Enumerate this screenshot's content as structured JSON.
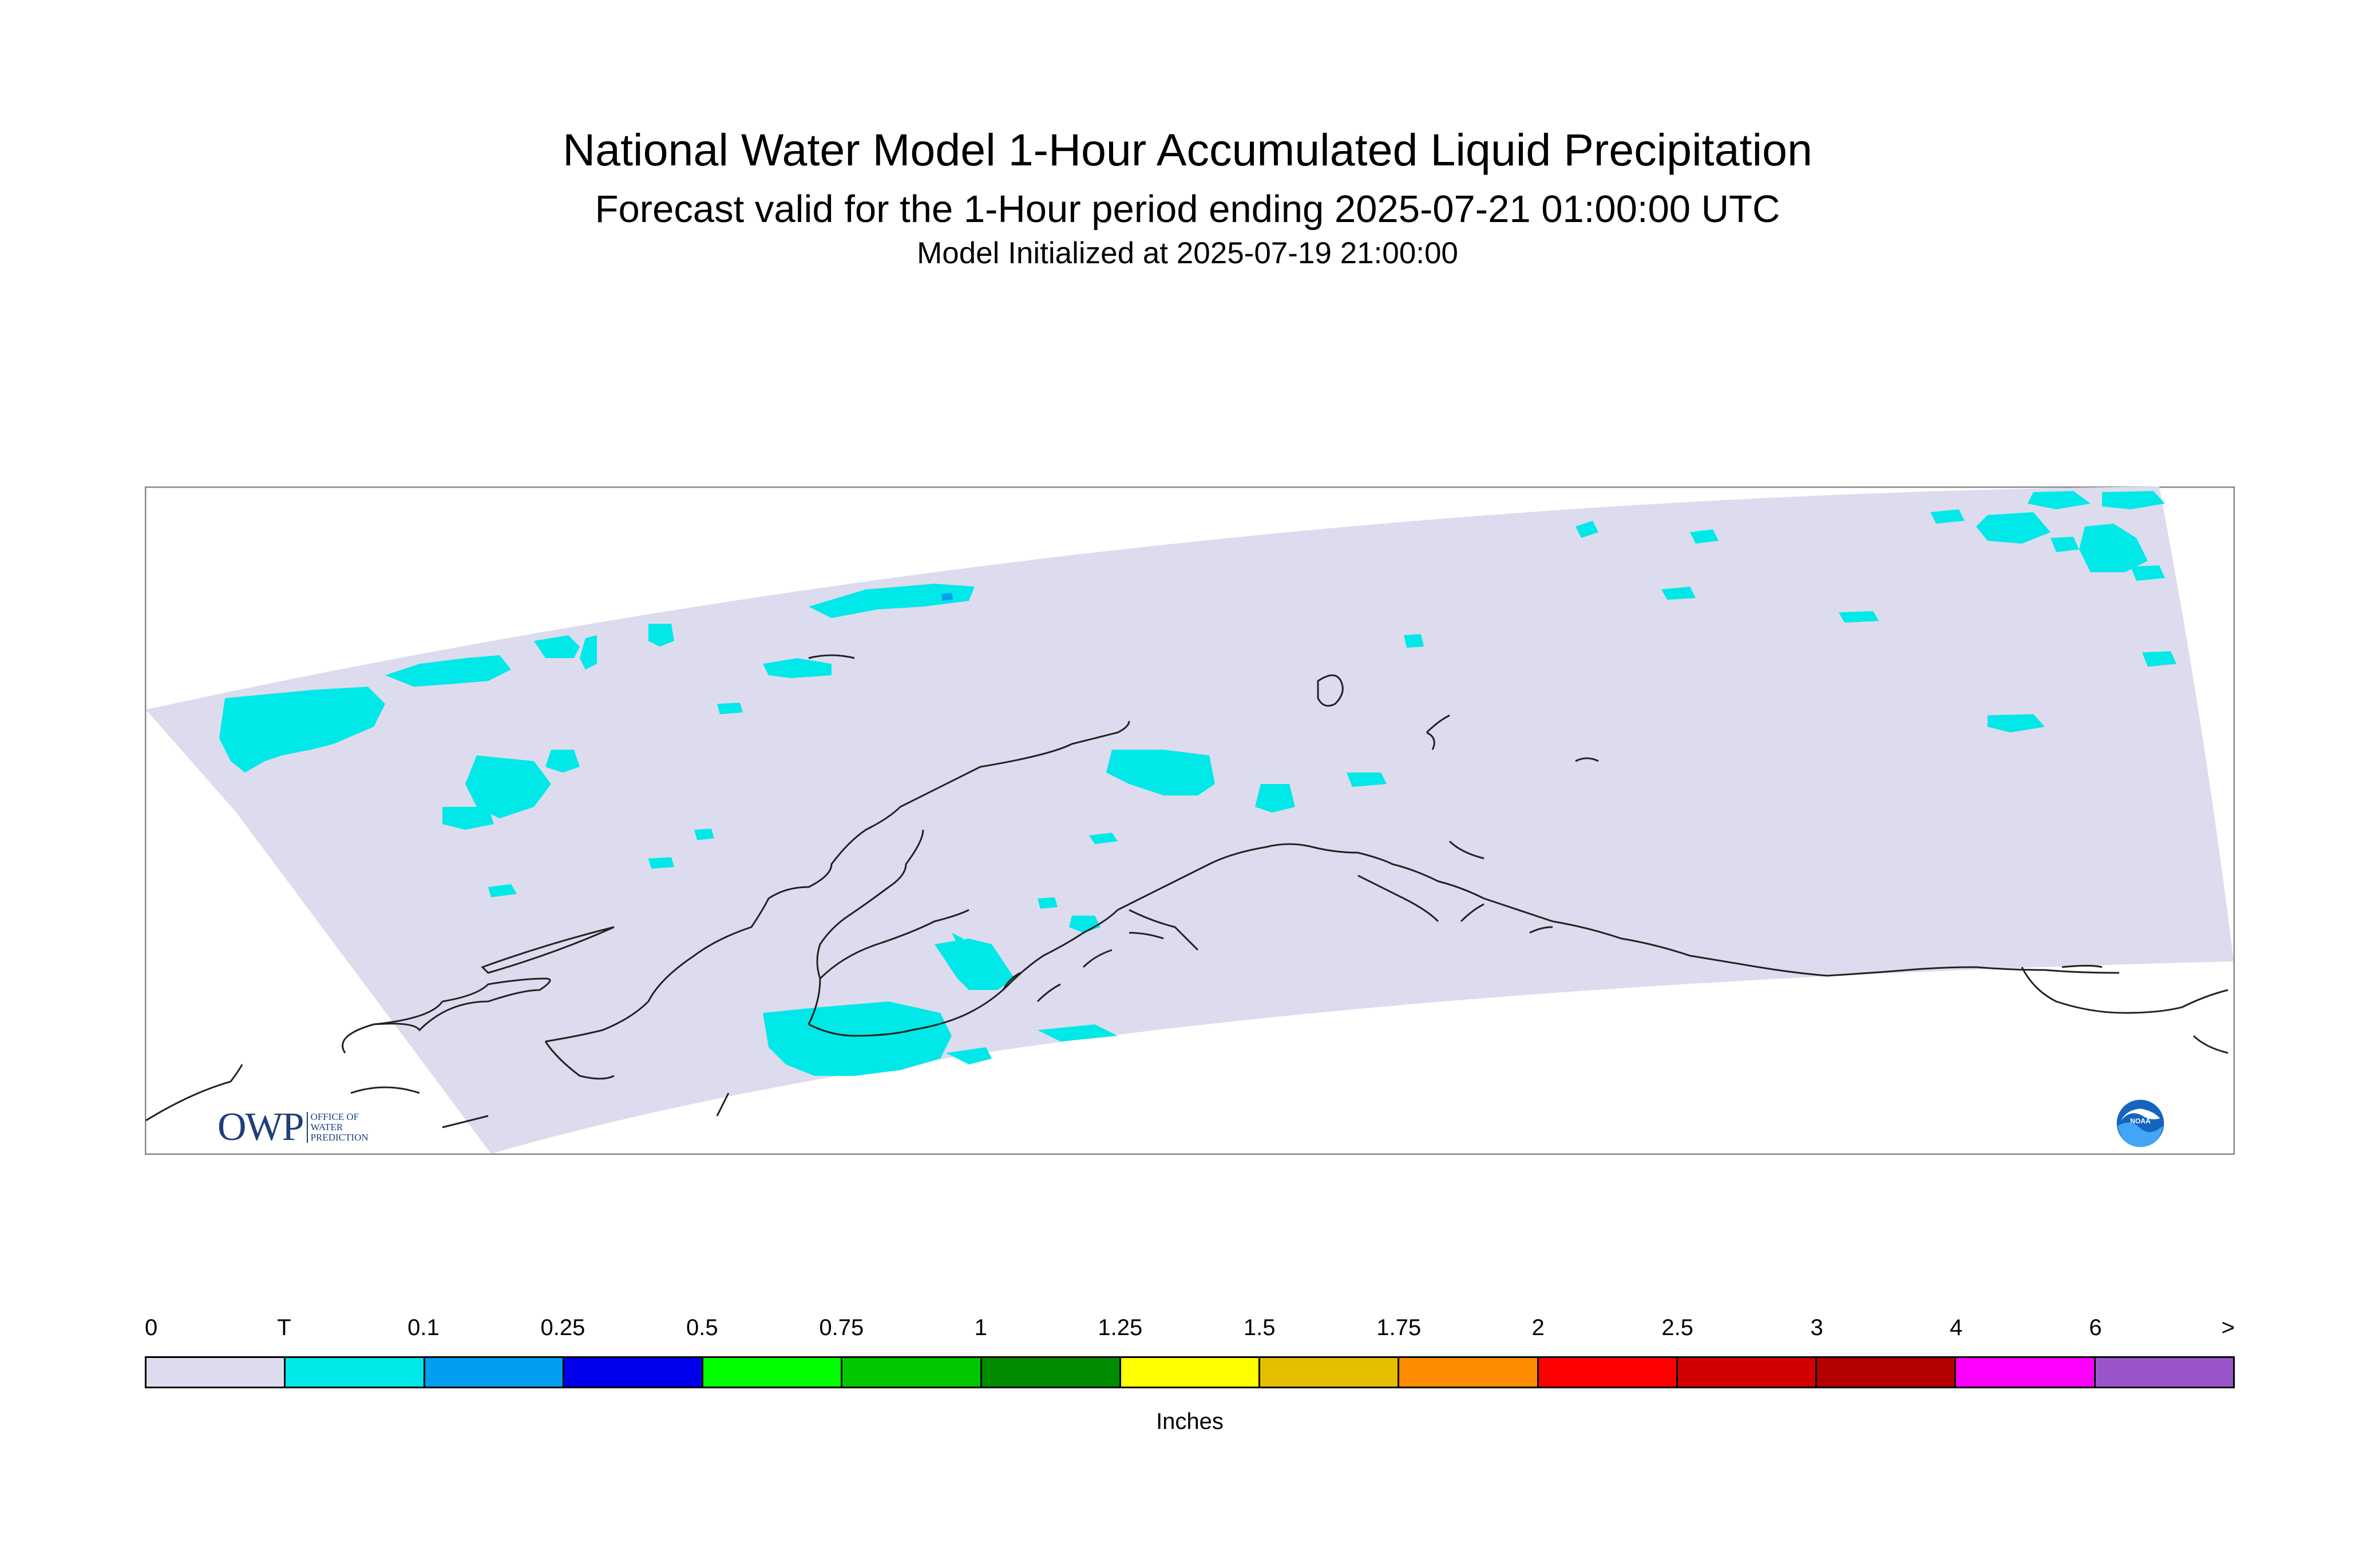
{
  "title": "National Water Model 1-Hour Accumulated Liquid Precipitation",
  "subtitle": "Forecast valid for the 1-Hour period ending 2025-07-21 01:00:00 UTC",
  "init_line": "Model Initialized at 2025-07-19 21:00:00",
  "logos": {
    "owp_word": "OWP",
    "owp_lines": [
      "OFFICE OF",
      "WATER",
      "PREDICTION"
    ],
    "noaa_text": "NOAA"
  },
  "legend": {
    "unit": "Inches",
    "ticks": [
      "0",
      "T",
      "0.1",
      "0.25",
      "0.5",
      "0.75",
      "1",
      "1.25",
      "1.5",
      "1.75",
      "2",
      "2.5",
      "3",
      "4",
      "6",
      ">"
    ],
    "colors": [
      "#dcdcee",
      "#00e8e8",
      "#009ff0",
      "#0000ee",
      "#00ff00",
      "#00c800",
      "#008c00",
      "#ffff00",
      "#e6be00",
      "#ff8c00",
      "#ff0000",
      "#d20000",
      "#b40000",
      "#ff00ff",
      "#9955c9"
    ]
  },
  "colors": {
    "domain_fill": "#dcdcee",
    "trace_fill": "#00e8e8",
    "light_fill": "#009ff0",
    "coastline": "#222222"
  }
}
